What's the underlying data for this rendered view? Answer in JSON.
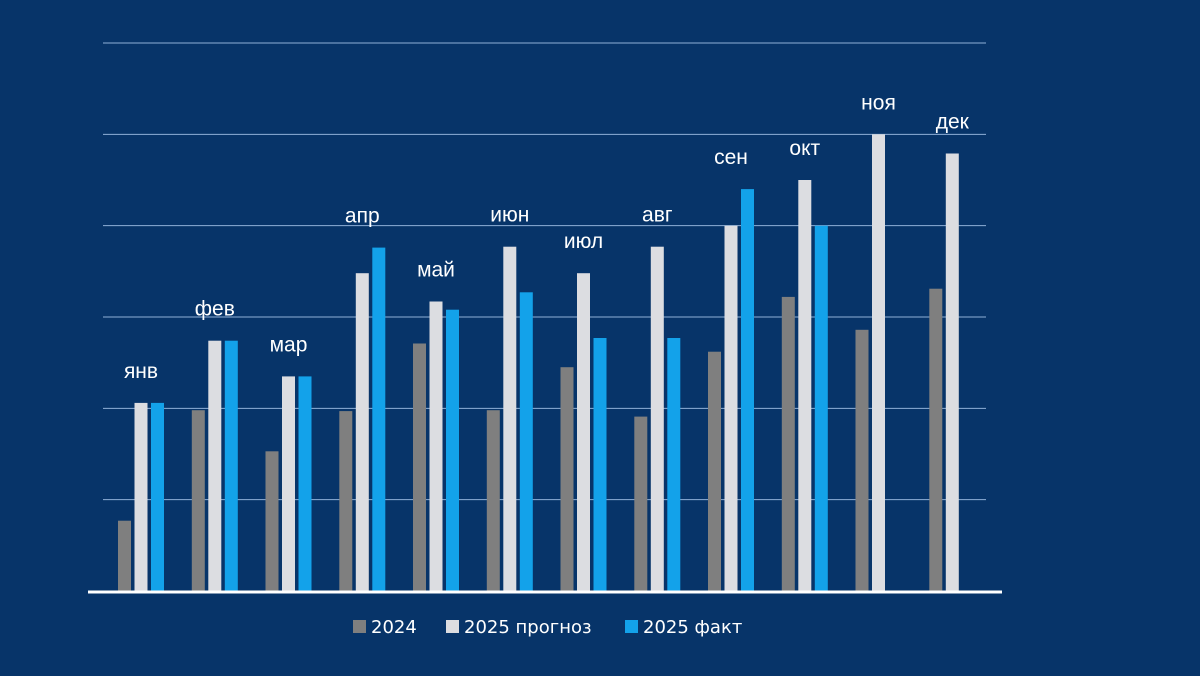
{
  "chart_data": {
    "type": "bar",
    "title": "",
    "xlabel": "",
    "ylabel": "",
    "ylim": [
      0,
      6
    ],
    "grid": true,
    "y_tick_labels_visible": false,
    "legend_position": "bottom",
    "categories": [
      "янв",
      "фев",
      "мар",
      "апр",
      "май",
      "июн",
      "июл",
      "авг",
      "сен",
      "окт",
      "ноя",
      "дек"
    ],
    "series": [
      {
        "name": "2024",
        "color": "#7f7f7f",
        "values": [
          0.77,
          1.98,
          1.53,
          1.97,
          2.71,
          1.98,
          2.45,
          1.91,
          2.62,
          3.22,
          2.86,
          3.31
        ]
      },
      {
        "name": "2025 прогноз",
        "color": "#dcdde1",
        "values": [
          2.06,
          2.74,
          2.35,
          3.48,
          3.17,
          3.77,
          3.48,
          3.77,
          4.0,
          4.5,
          5.0,
          4.79
        ]
      },
      {
        "name": "2025 факт",
        "color": "#13a2ea",
        "values": [
          2.06,
          2.74,
          2.35,
          3.76,
          3.08,
          3.27,
          2.77,
          2.77,
          4.4,
          4.0,
          null,
          null
        ]
      }
    ]
  }
}
